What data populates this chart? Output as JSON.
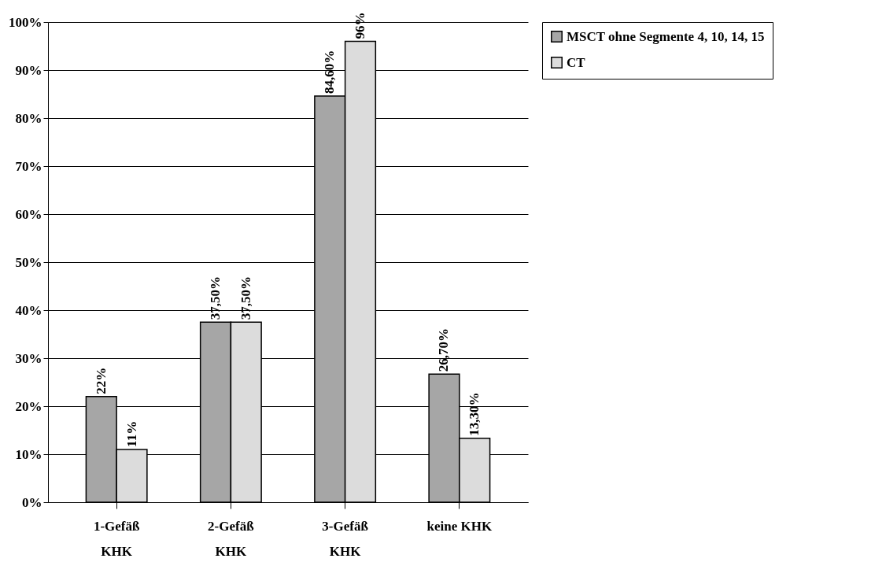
{
  "chart_data": {
    "type": "bar",
    "categories": [
      "1-Gefäß\nKHK",
      "2-Gefäß\nKHK",
      "3-Gefäß\nKHK",
      "keine KHK"
    ],
    "series": [
      {
        "name": "MSCT ohne Segmente 4, 10, 14, 15",
        "color": "#a6a6a6",
        "values": [
          22,
          37.5,
          84.6,
          26.7
        ],
        "value_labels": [
          "22%",
          "37,50%",
          "84,60%",
          "26,70%"
        ]
      },
      {
        "name": "CT",
        "color": "#dcdcdc",
        "values": [
          11,
          37.5,
          96,
          13.3
        ],
        "value_labels": [
          "11%",
          "37,50%",
          "96%",
          "13,30%"
        ]
      }
    ],
    "ylim": [
      0,
      100
    ],
    "yticks": [
      {
        "value": 0,
        "label": "0%"
      },
      {
        "value": 10,
        "label": "10%"
      },
      {
        "value": 20,
        "label": "20%"
      },
      {
        "value": 30,
        "label": "30%"
      },
      {
        "value": 40,
        "label": "40%"
      },
      {
        "value": 50,
        "label": "50%"
      },
      {
        "value": 60,
        "label": "60%"
      },
      {
        "value": 70,
        "label": "70%"
      },
      {
        "value": 80,
        "label": "80%"
      },
      {
        "value": 90,
        "label": "90%"
      },
      {
        "value": 100,
        "label": "100%"
      }
    ],
    "grid": "y",
    "legend": "right"
  }
}
